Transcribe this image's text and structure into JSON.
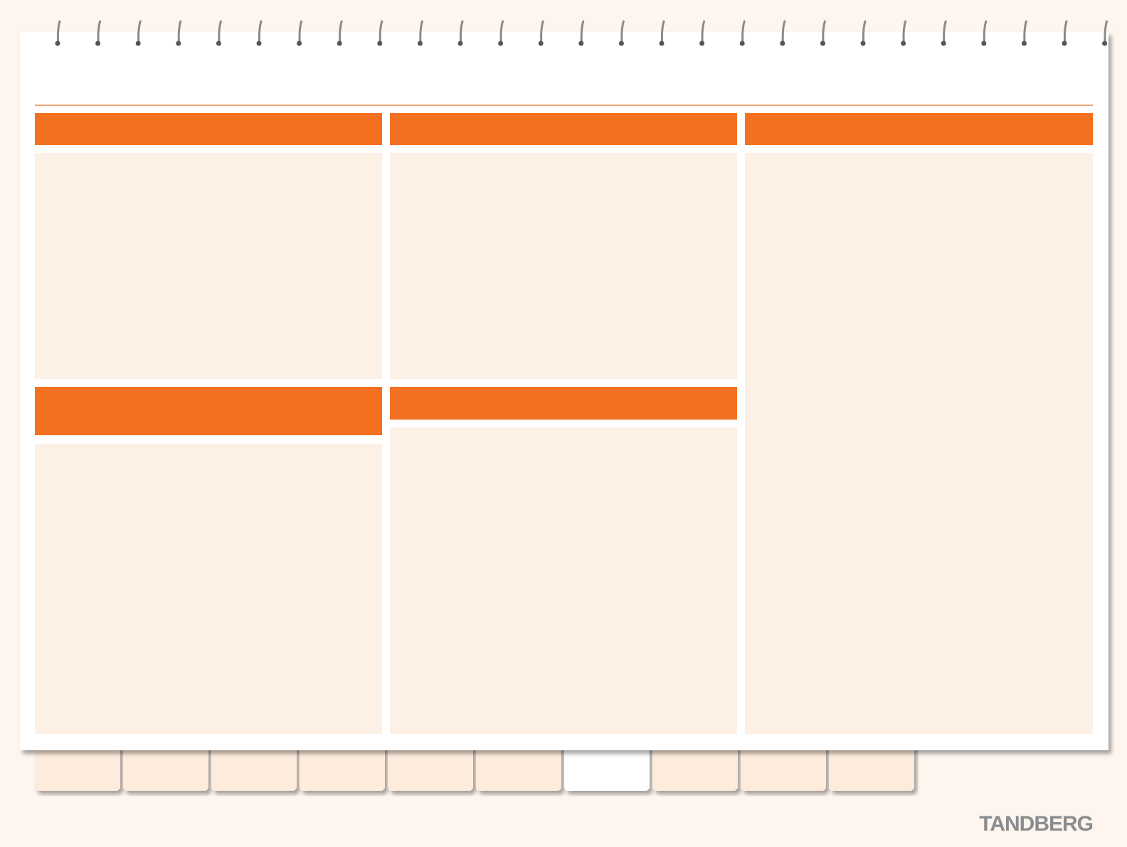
{
  "brand": "TANDBERG"
}
